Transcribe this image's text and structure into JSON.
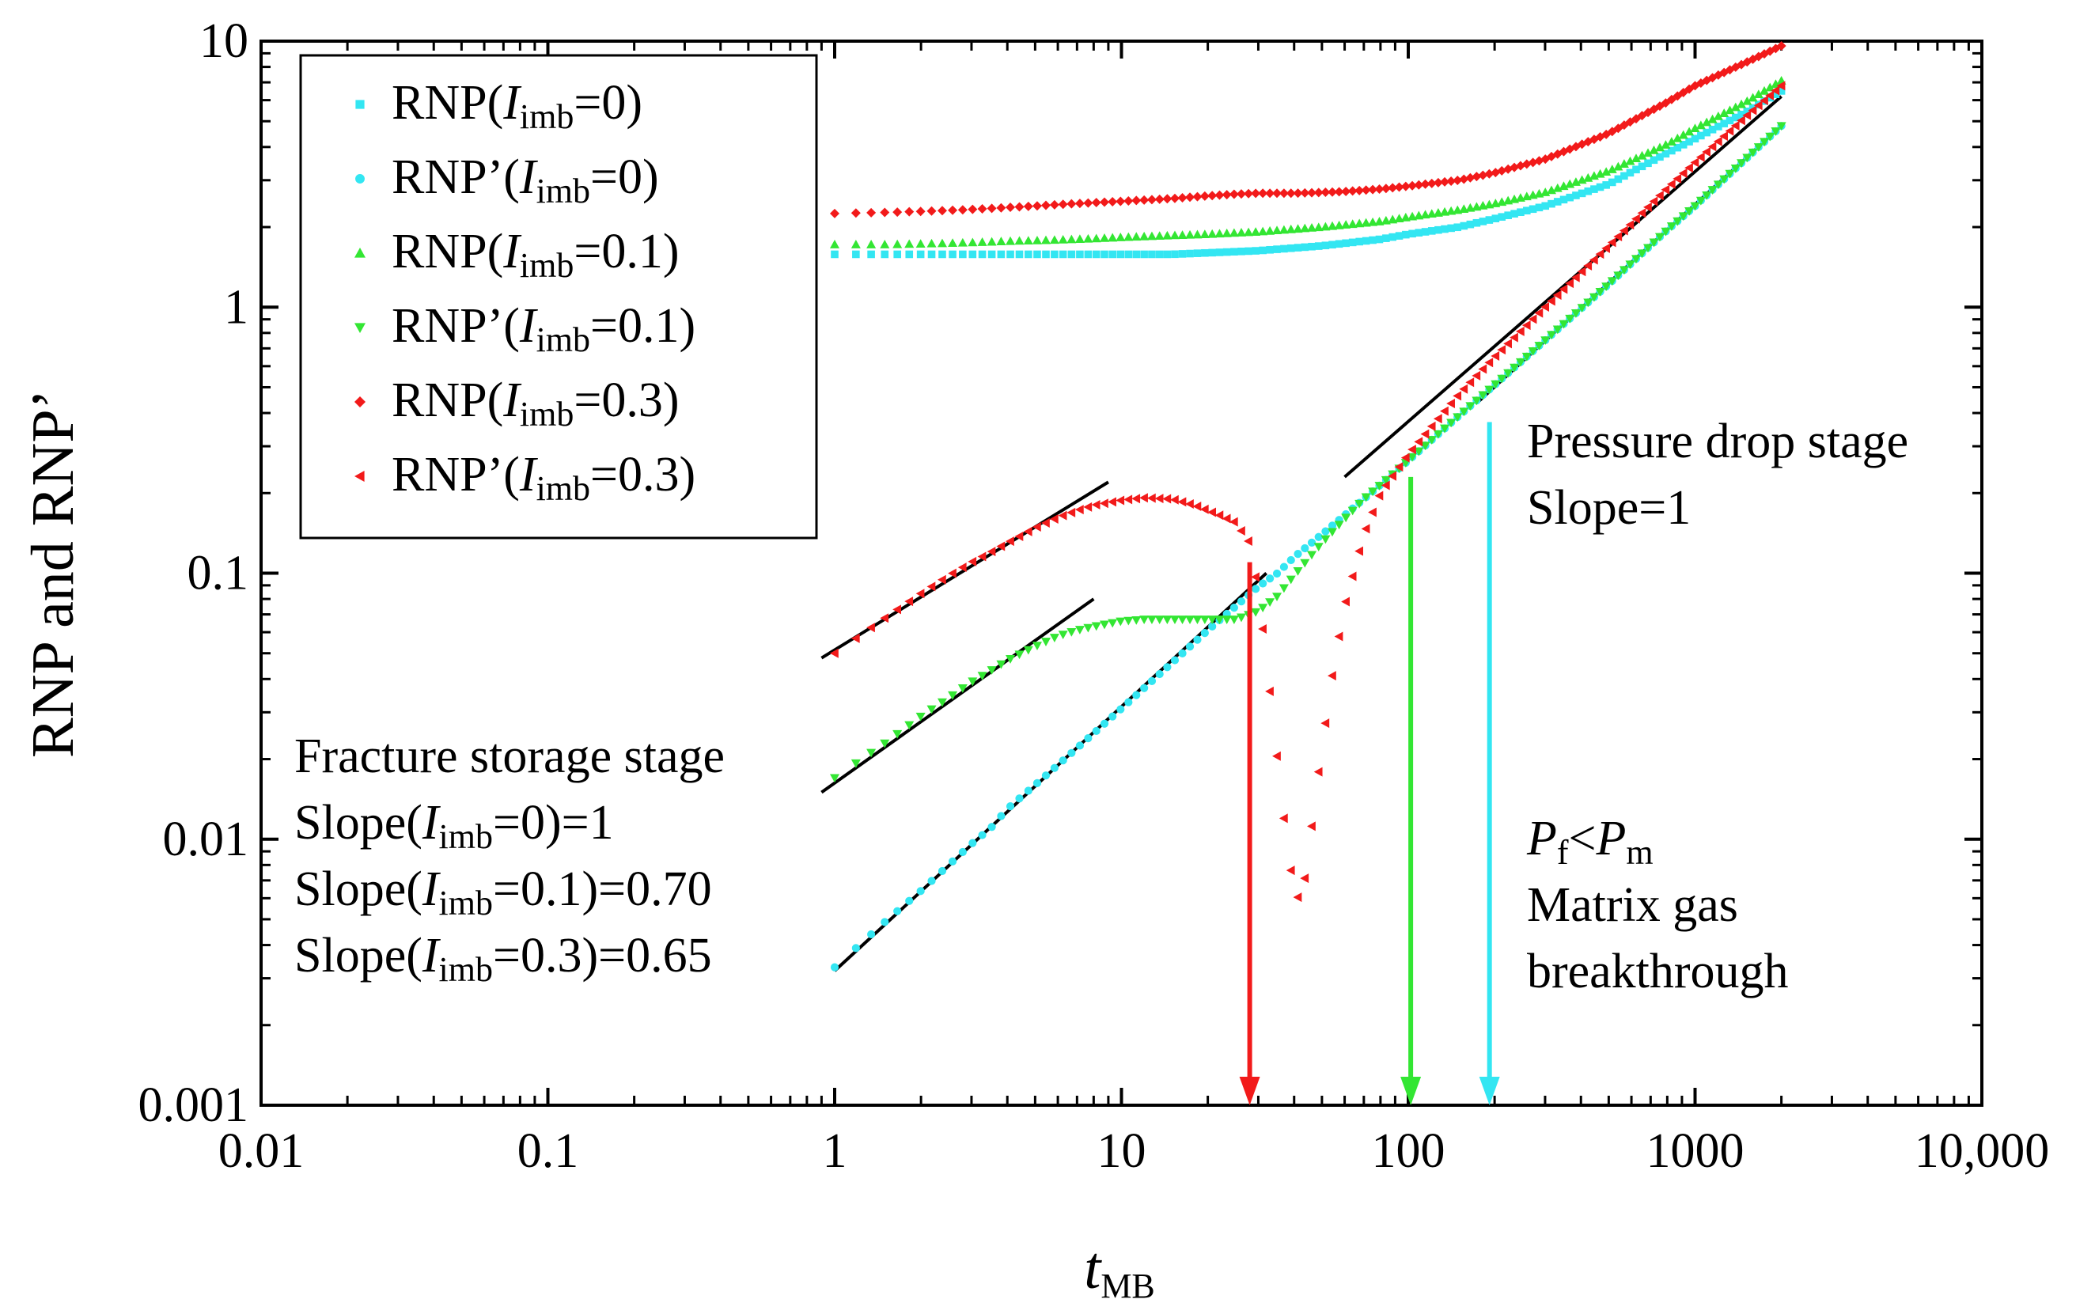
{
  "chart_data": {
    "type": "scatter",
    "x_scale": "log",
    "y_scale": "log",
    "xlim": [
      0.01,
      10000
    ],
    "ylim": [
      0.001,
      10
    ],
    "x_ticks": [
      0.01,
      0.1,
      1,
      10,
      100,
      1000,
      10000
    ],
    "x_tick_labels": [
      "0.01",
      "0.1",
      "1",
      "10",
      "100",
      "1000",
      "10,000"
    ],
    "y_ticks": [
      0.001,
      0.01,
      0.1,
      1,
      10
    ],
    "y_tick_labels": [
      "0.001",
      "0.01",
      "0.1",
      "1",
      "10"
    ],
    "xlabel": {
      "main": "t",
      "sub": "MB"
    },
    "ylabel": "RNP and RNP’",
    "colors": {
      "imb0": "#33e6f2",
      "imb01": "#33e633",
      "imb03": "#f21a1a",
      "line": "#000000"
    },
    "legend": [
      {
        "prefix": "RNP(",
        "var": "I",
        "sub": "imb",
        "suffix": "=0)",
        "color": "#33e6f2",
        "marker": "square"
      },
      {
        "prefix": "RNP’(",
        "var": "I",
        "sub": "imb",
        "suffix": "=0)",
        "color": "#33e6f2",
        "marker": "circle"
      },
      {
        "prefix": "RNP(",
        "var": "I",
        "sub": "imb",
        "suffix": "=0.1)",
        "color": "#33e633",
        "marker": "triangle-up"
      },
      {
        "prefix": "RNP’(",
        "var": "I",
        "sub": "imb",
        "suffix": "=0.1)",
        "color": "#33e633",
        "marker": "triangle-down"
      },
      {
        "prefix": "RNP(",
        "var": "I",
        "sub": "imb",
        "suffix": "=0.3)",
        "color": "#f21a1a",
        "marker": "diamond"
      },
      {
        "prefix": "RNP’(",
        "var": "I",
        "sub": "imb",
        "suffix": "=0.3)",
        "color": "#f21a1a",
        "marker": "triangle-left"
      }
    ],
    "series": [
      {
        "name": "RNP(Iimb=0)",
        "color": "#33e6f2",
        "marker": "square",
        "x": [
          1,
          1.5,
          2,
          2.5,
          3,
          3.5,
          4,
          5,
          6,
          8,
          10,
          15,
          20,
          30,
          50,
          80,
          100,
          150,
          200,
          300,
          500,
          800,
          1000,
          1500,
          2000
        ],
        "y": [
          1.58,
          1.58,
          1.58,
          1.58,
          1.58,
          1.58,
          1.58,
          1.58,
          1.58,
          1.58,
          1.58,
          1.58,
          1.6,
          1.63,
          1.7,
          1.8,
          1.88,
          2.0,
          2.15,
          2.4,
          2.9,
          3.8,
          4.3,
          5.4,
          6.5
        ]
      },
      {
        "name": "RNP’(Iimb=0)",
        "color": "#33e6f2",
        "marker": "circle",
        "x": [
          1,
          1.5,
          2,
          2.5,
          3,
          3.5,
          4,
          5,
          6,
          7,
          8,
          10,
          12,
          15,
          20,
          25,
          30,
          35,
          40,
          50,
          60,
          70,
          80,
          100,
          150,
          200,
          300,
          500,
          800,
          1000,
          1500,
          2000
        ],
        "y": [
          0.0033,
          0.0049,
          0.0064,
          0.008,
          0.0096,
          0.011,
          0.013,
          0.016,
          0.019,
          0.022,
          0.025,
          0.031,
          0.037,
          0.046,
          0.061,
          0.075,
          0.089,
          0.1,
          0.115,
          0.14,
          0.165,
          0.19,
          0.215,
          0.265,
          0.39,
          0.51,
          0.75,
          1.22,
          1.95,
          2.4,
          3.6,
          4.8
        ]
      },
      {
        "name": "RNP(Iimb=0.1)",
        "color": "#33e633",
        "marker": "triangle-up",
        "x": [
          1,
          1.5,
          2,
          2.5,
          3,
          3.5,
          4,
          5,
          6,
          8,
          10,
          15,
          20,
          30,
          50,
          80,
          100,
          150,
          200,
          300,
          500,
          800,
          1000,
          1500,
          2000
        ],
        "y": [
          1.72,
          1.72,
          1.73,
          1.74,
          1.75,
          1.76,
          1.77,
          1.78,
          1.79,
          1.81,
          1.83,
          1.86,
          1.88,
          1.92,
          2.0,
          2.1,
          2.18,
          2.32,
          2.45,
          2.7,
          3.25,
          4.1,
          4.7,
          5.9,
          7.1
        ]
      },
      {
        "name": "RNP’(Iimb=0.1)",
        "color": "#33e633",
        "marker": "triangle-down",
        "x": [
          1,
          1.5,
          2,
          2.5,
          3,
          3.5,
          4,
          5,
          6,
          7,
          8,
          10,
          12,
          15,
          18,
          20,
          25,
          30,
          35,
          40,
          50,
          60,
          70,
          80,
          100,
          150,
          200,
          300,
          500,
          800,
          1000,
          1500,
          2000
        ],
        "y": [
          0.017,
          0.023,
          0.029,
          0.034,
          0.039,
          0.043,
          0.047,
          0.053,
          0.058,
          0.061,
          0.063,
          0.066,
          0.067,
          0.067,
          0.067,
          0.067,
          0.067,
          0.072,
          0.082,
          0.098,
          0.13,
          0.16,
          0.19,
          0.215,
          0.265,
          0.39,
          0.51,
          0.75,
          1.22,
          1.95,
          2.4,
          3.6,
          4.8
        ]
      },
      {
        "name": "RNP(Iimb=0.3)",
        "color": "#f21a1a",
        "marker": "diamond",
        "x": [
          1,
          1.5,
          2,
          2.5,
          3,
          3.5,
          4,
          5,
          6,
          8,
          10,
          15,
          20,
          25,
          30,
          40,
          50,
          60,
          80,
          100,
          150,
          200,
          300,
          500,
          800,
          1000,
          1500,
          2000
        ],
        "y": [
          2.25,
          2.27,
          2.29,
          2.31,
          2.33,
          2.35,
          2.37,
          2.4,
          2.43,
          2.47,
          2.5,
          2.56,
          2.62,
          2.66,
          2.68,
          2.68,
          2.7,
          2.72,
          2.78,
          2.85,
          3.0,
          3.2,
          3.6,
          4.5,
          5.9,
          6.8,
          8.3,
          9.6
        ]
      },
      {
        "name": "RNP’(Iimb=0.3)",
        "color": "#f21a1a",
        "marker": "triangle-left",
        "x": [
          1,
          1.5,
          2,
          2.5,
          3,
          3.5,
          4,
          5,
          6,
          7,
          8,
          10,
          12,
          15,
          18,
          20,
          22,
          25,
          28,
          30,
          32,
          34,
          36,
          38,
          40,
          42,
          44,
          46,
          48,
          50,
          55,
          60,
          70,
          80,
          100,
          150,
          200,
          300,
          500,
          800,
          1000,
          1500,
          2000
        ],
        "y": [
          0.05,
          0.068,
          0.084,
          0.098,
          0.11,
          0.12,
          0.13,
          0.148,
          0.162,
          0.172,
          0.18,
          0.188,
          0.192,
          0.19,
          0.18,
          0.172,
          0.165,
          0.155,
          0.13,
          0.085,
          0.048,
          0.026,
          0.015,
          0.009,
          0.0065,
          0.0058,
          0.0075,
          0.011,
          0.016,
          0.022,
          0.045,
          0.075,
          0.14,
          0.2,
          0.28,
          0.47,
          0.65,
          1.0,
          1.7,
          2.8,
          3.5,
          5.2,
          6.8
        ]
      }
    ],
    "reference_lines": [
      {
        "name": "fit-line-rnp3-early",
        "x": [
          0.9,
          9
        ],
        "y": [
          0.048,
          0.22
        ]
      },
      {
        "name": "fit-line-rnp01-early",
        "x": [
          0.9,
          8
        ],
        "y": [
          0.015,
          0.08
        ]
      },
      {
        "name": "fit-line-rnp0-early",
        "x": [
          1,
          32
        ],
        "y": [
          0.0032,
          0.1
        ]
      },
      {
        "name": "fit-line-late-upper",
        "x": [
          60,
          2000
        ],
        "y": [
          0.23,
          6.2
        ]
      },
      {
        "name": "fit-line-late-lower",
        "x": [
          175,
          2000
        ],
        "y": [
          0.44,
          4.8
        ]
      }
    ],
    "arrows": [
      {
        "name": "arrow-red",
        "x": 28,
        "y_from": 0.11,
        "y_to": 0.001,
        "color": "#f21a1a"
      },
      {
        "name": "arrow-green",
        "x": 102,
        "y_from": 0.23,
        "y_to": 0.001,
        "color": "#33e633"
      },
      {
        "name": "arrow-cyan",
        "x": 192,
        "y_from": 0.37,
        "y_to": 0.001,
        "color": "#33e6f2"
      }
    ],
    "annotations": {
      "fracture_title": "Fracture storage stage",
      "slope_rows": [
        {
          "prefix": "Slope(",
          "var": "I",
          "sub": "imb",
          "suffix": "=0)=1"
        },
        {
          "prefix": "Slope(",
          "var": "I",
          "sub": "imb",
          "suffix": "=0.1)=0.70"
        },
        {
          "prefix": "Slope(",
          "var": "I",
          "sub": "imb",
          "suffix": "=0.3)=0.65"
        }
      ],
      "pressure_title": "Pressure drop stage",
      "pressure_slope": "Slope=1",
      "pf_var": "P",
      "pf_sub": "f",
      "lt": "<",
      "pm_var": "P",
      "pm_sub": "m",
      "matrix_line1": "Matrix gas",
      "matrix_line2": "breakthrough"
    }
  }
}
